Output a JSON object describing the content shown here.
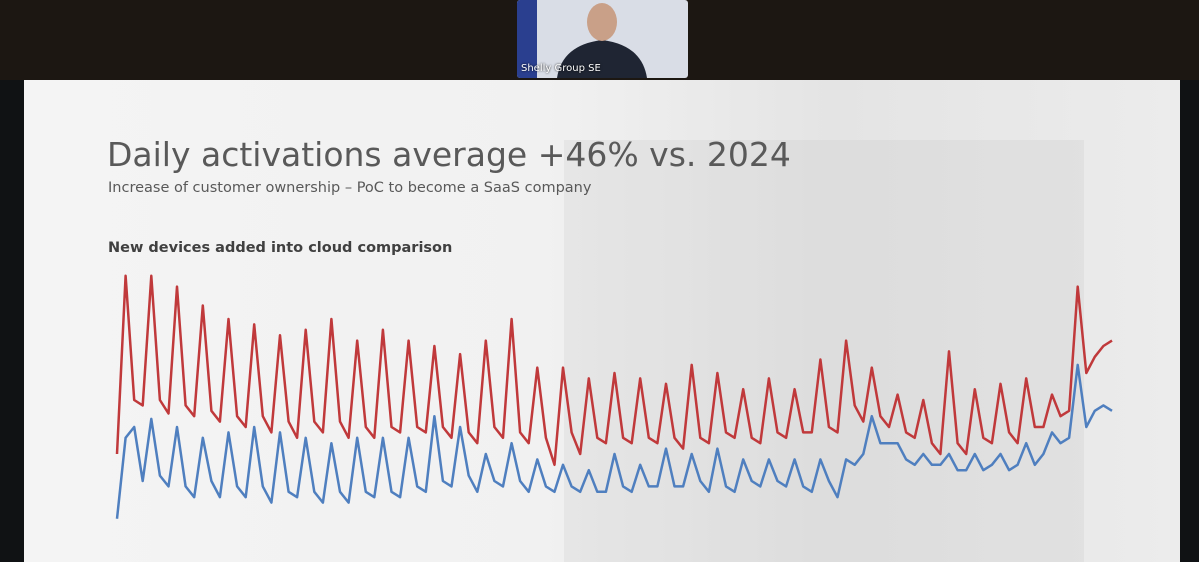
{
  "window": {
    "participant_name": "Shelly Group SE"
  },
  "slide": {
    "title": "Daily activations average +46% vs. 2024",
    "subtitle": "Increase of customer ownership – PoC to become a SaaS company"
  },
  "chart_data": {
    "type": "line",
    "title": "New devices added into cloud comparison",
    "ylim": [
      0,
      100
    ],
    "series": [
      {
        "color": "#c0393b",
        "values": [
          30,
          96,
          50,
          48,
          96,
          50,
          45,
          92,
          48,
          44,
          85,
          46,
          42,
          80,
          44,
          40,
          78,
          44,
          38,
          74,
          42,
          36,
          76,
          42,
          38,
          80,
          42,
          36,
          72,
          40,
          36,
          76,
          40,
          38,
          72,
          40,
          38,
          70,
          40,
          36,
          67,
          38,
          34,
          72,
          40,
          36,
          80,
          38,
          34,
          62,
          36,
          26,
          62,
          38,
          30,
          58,
          36,
          34,
          60,
          36,
          34,
          58,
          36,
          34,
          56,
          36,
          32,
          63,
          36,
          34,
          60,
          38,
          36,
          54,
          36,
          34,
          58,
          38,
          36,
          54,
          38,
          38,
          65,
          40,
          38,
          72,
          48,
          42,
          62,
          44,
          40,
          52,
          38,
          36,
          50,
          34,
          30,
          68,
          34,
          30,
          54,
          36,
          34,
          56,
          38,
          34,
          58,
          40,
          40,
          52,
          44,
          46,
          92,
          60,
          66,
          70,
          72
        ]
      },
      {
        "color": "#4f7fbf",
        "values": [
          6,
          36,
          40,
          20,
          43,
          22,
          18,
          40,
          18,
          14,
          36,
          20,
          14,
          38,
          18,
          14,
          40,
          18,
          12,
          38,
          16,
          14,
          36,
          16,
          12,
          34,
          16,
          12,
          36,
          16,
          14,
          36,
          16,
          14,
          36,
          18,
          16,
          44,
          20,
          18,
          40,
          22,
          16,
          30,
          20,
          18,
          34,
          20,
          16,
          28,
          18,
          16,
          26,
          18,
          16,
          24,
          16,
          16,
          30,
          18,
          16,
          26,
          18,
          18,
          32,
          18,
          18,
          30,
          20,
          16,
          32,
          18,
          16,
          28,
          20,
          18,
          28,
          20,
          18,
          28,
          18,
          16,
          28,
          20,
          14,
          28,
          26,
          30,
          44,
          34,
          34,
          34,
          28,
          26,
          30,
          26,
          26,
          30,
          24,
          24,
          30,
          24,
          26,
          30,
          24,
          26,
          34,
          26,
          30,
          38,
          34,
          36,
          63,
          40,
          46,
          48,
          46
        ]
      }
    ]
  }
}
